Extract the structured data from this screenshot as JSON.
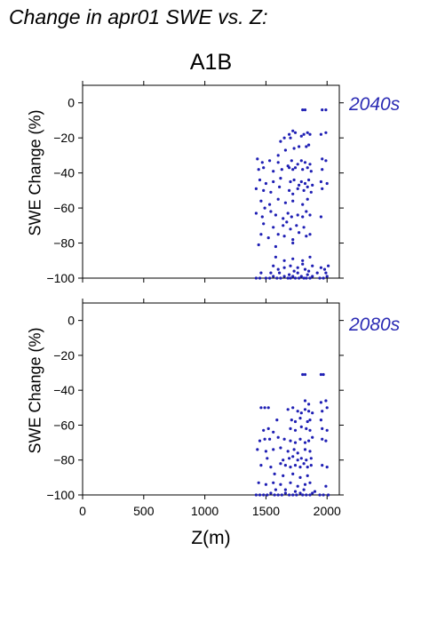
{
  "title": "Change in apr01 SWE vs. Z:",
  "scenario": "A1B",
  "xlabel": "Z(m)",
  "colors": {
    "points": "#1f1fb4",
    "period_text": "#2b2bb4",
    "axes": "#000000"
  },
  "chart_data": [
    {
      "type": "scatter",
      "panel_label": "2040s",
      "ylabel": "SWE Change (%)",
      "xlim": [
        0,
        2100
      ],
      "ylim": [
        -100,
        10
      ],
      "yticks": [
        0,
        -20,
        -40,
        -60,
        -80,
        -100
      ],
      "xticks": [
        0,
        500,
        1000,
        1500,
        2000
      ],
      "x_tick_labels_shown": false,
      "points": [
        [
          1800,
          -4
        ],
        [
          1820,
          -4
        ],
        [
          1960,
          -4
        ],
        [
          1990,
          -4
        ],
        [
          1650,
          -20
        ],
        [
          1690,
          -18
        ],
        [
          1720,
          -16
        ],
        [
          1740,
          -17
        ],
        [
          1790,
          -19
        ],
        [
          1810,
          -18
        ],
        [
          1840,
          -17
        ],
        [
          1860,
          -18
        ],
        [
          1950,
          -18
        ],
        [
          1990,
          -17
        ],
        [
          1620,
          -22
        ],
        [
          1700,
          -20
        ],
        [
          1730,
          -26
        ],
        [
          1770,
          -25
        ],
        [
          1830,
          -25
        ],
        [
          1850,
          -24
        ],
        [
          1600,
          -30
        ],
        [
          1660,
          -27
        ],
        [
          1430,
          -32
        ],
        [
          1470,
          -34
        ],
        [
          1530,
          -33
        ],
        [
          1600,
          -34
        ],
        [
          1680,
          -36
        ],
        [
          1710,
          -33
        ],
        [
          1760,
          -35
        ],
        [
          1790,
          -33
        ],
        [
          1820,
          -34
        ],
        [
          1860,
          -35
        ],
        [
          1960,
          -32
        ],
        [
          1990,
          -33
        ],
        [
          1440,
          -38
        ],
        [
          1480,
          -37
        ],
        [
          1560,
          -39
        ],
        [
          1630,
          -38
        ],
        [
          1690,
          -37
        ],
        [
          1720,
          -38
        ],
        [
          1740,
          -37
        ],
        [
          1800,
          -38
        ],
        [
          1840,
          -37
        ],
        [
          1870,
          -39
        ],
        [
          1960,
          -38
        ],
        [
          1450,
          -44
        ],
        [
          1500,
          -46
        ],
        [
          1560,
          -45
        ],
        [
          1620,
          -43
        ],
        [
          1700,
          -45
        ],
        [
          1730,
          -44
        ],
        [
          1770,
          -47
        ],
        [
          1790,
          -45
        ],
        [
          1820,
          -46
        ],
        [
          1850,
          -44
        ],
        [
          1880,
          -47
        ],
        [
          1950,
          -45
        ],
        [
          2000,
          -46
        ],
        [
          1420,
          -49
        ],
        [
          1480,
          -50
        ],
        [
          1540,
          -51
        ],
        [
          1610,
          -48
        ],
        [
          1690,
          -50
        ],
        [
          1720,
          -52
        ],
        [
          1760,
          -49
        ],
        [
          1810,
          -50
        ],
        [
          1840,
          -48
        ],
        [
          1870,
          -51
        ],
        [
          1960,
          -49
        ],
        [
          1460,
          -56
        ],
        [
          1530,
          -58
        ],
        [
          1600,
          -55
        ],
        [
          1660,
          -57
        ],
        [
          1720,
          -56
        ],
        [
          1800,
          -58
        ],
        [
          1840,
          -55
        ],
        [
          1420,
          -63
        ],
        [
          1470,
          -65
        ],
        [
          1540,
          -62
        ],
        [
          1580,
          -64
        ],
        [
          1640,
          -66
        ],
        [
          1680,
          -63
        ],
        [
          1710,
          -65
        ],
        [
          1760,
          -64
        ],
        [
          1800,
          -65
        ],
        [
          1830,
          -62
        ],
        [
          1860,
          -64
        ],
        [
          1950,
          -65
        ],
        [
          1490,
          -60
        ],
        [
          1480,
          -69
        ],
        [
          1560,
          -71
        ],
        [
          1640,
          -70
        ],
        [
          1670,
          -68
        ],
        [
          1700,
          -72
        ],
        [
          1750,
          -70
        ],
        [
          1810,
          -71
        ],
        [
          1460,
          -75
        ],
        [
          1520,
          -77
        ],
        [
          1600,
          -75
        ],
        [
          1650,
          -76
        ],
        [
          1720,
          -78
        ],
        [
          1770,
          -74
        ],
        [
          1830,
          -76
        ],
        [
          1860,
          -75
        ],
        [
          1440,
          -81
        ],
        [
          1580,
          -82
        ],
        [
          1720,
          -80
        ],
        [
          1580,
          -88
        ],
        [
          1650,
          -90
        ],
        [
          1720,
          -89
        ],
        [
          1800,
          -90
        ],
        [
          1860,
          -88
        ],
        [
          1560,
          -93
        ],
        [
          1600,
          -95
        ],
        [
          1650,
          -94
        ],
        [
          1700,
          -93
        ],
        [
          1730,
          -96
        ],
        [
          1760,
          -94
        ],
        [
          1800,
          -92
        ],
        [
          1820,
          -95
        ],
        [
          1850,
          -96
        ],
        [
          1880,
          -93
        ],
        [
          1950,
          -94
        ],
        [
          1980,
          -95
        ],
        [
          2010,
          -93
        ],
        [
          1420,
          -100
        ],
        [
          1450,
          -100
        ],
        [
          1500,
          -100
        ],
        [
          1530,
          -100
        ],
        [
          1560,
          -99
        ],
        [
          1590,
          -100
        ],
        [
          1620,
          -100
        ],
        [
          1650,
          -99
        ],
        [
          1680,
          -100
        ],
        [
          1700,
          -100
        ],
        [
          1720,
          -99
        ],
        [
          1740,
          -100
        ],
        [
          1770,
          -100
        ],
        [
          1790,
          -99
        ],
        [
          1810,
          -100
        ],
        [
          1830,
          -100
        ],
        [
          1860,
          -100
        ],
        [
          1880,
          -99
        ],
        [
          1940,
          -100
        ],
        [
          1970,
          -100
        ],
        [
          2000,
          -99
        ],
        [
          1460,
          -97
        ],
        [
          1540,
          -97
        ],
        [
          1610,
          -97
        ],
        [
          1690,
          -98
        ],
        [
          1760,
          -97
        ],
        [
          1840,
          -98
        ],
        [
          1920,
          -97
        ],
        [
          1990,
          -97
        ]
      ]
    },
    {
      "type": "scatter",
      "panel_label": "2080s",
      "ylabel": "SWE Change (%)",
      "xlabel": "Z(m)",
      "xlim": [
        0,
        2100
      ],
      "ylim": [
        -100,
        10
      ],
      "yticks": [
        0,
        -20,
        -40,
        -60,
        -80,
        -100
      ],
      "xticks": [
        0,
        500,
        1000,
        1500,
        2000
      ],
      "xtick_labels": [
        "0",
        "500",
        "1000",
        "1500",
        "2000"
      ],
      "points": [
        [
          1800,
          -31
        ],
        [
          1820,
          -31
        ],
        [
          1950,
          -31
        ],
        [
          1970,
          -31
        ],
        [
          1820,
          -46
        ],
        [
          1850,
          -48
        ],
        [
          1950,
          -47
        ],
        [
          1990,
          -46
        ],
        [
          1460,
          -50
        ],
        [
          1490,
          -50
        ],
        [
          1520,
          -50
        ],
        [
          1680,
          -51
        ],
        [
          1720,
          -50
        ],
        [
          1760,
          -52
        ],
        [
          1790,
          -53
        ],
        [
          1820,
          -51
        ],
        [
          1850,
          -52
        ],
        [
          1880,
          -53
        ],
        [
          1960,
          -52
        ],
        [
          2000,
          -50
        ],
        [
          1590,
          -57
        ],
        [
          1710,
          -57
        ],
        [
          1740,
          -58
        ],
        [
          1780,
          -56
        ],
        [
          1840,
          -58
        ],
        [
          1860,
          -57
        ],
        [
          1950,
          -57
        ],
        [
          1480,
          -63
        ],
        [
          1520,
          -62
        ],
        [
          1560,
          -64
        ],
        [
          1700,
          -62
        ],
        [
          1740,
          -63
        ],
        [
          1790,
          -61
        ],
        [
          1830,
          -62
        ],
        [
          1860,
          -63
        ],
        [
          1960,
          -62
        ],
        [
          2000,
          -63
        ],
        [
          1450,
          -69
        ],
        [
          1490,
          -68
        ],
        [
          1530,
          -68
        ],
        [
          1600,
          -67
        ],
        [
          1650,
          -68
        ],
        [
          1700,
          -69
        ],
        [
          1740,
          -70
        ],
        [
          1780,
          -68
        ],
        [
          1820,
          -70
        ],
        [
          1850,
          -69
        ],
        [
          1880,
          -67
        ],
        [
          1960,
          -68
        ],
        [
          1990,
          -69
        ],
        [
          1430,
          -74
        ],
        [
          1500,
          -75
        ],
        [
          1560,
          -74
        ],
        [
          1620,
          -73
        ],
        [
          1680,
          -75
        ],
        [
          1730,
          -74
        ],
        [
          1760,
          -76
        ],
        [
          1820,
          -74
        ],
        [
          1860,
          -75
        ],
        [
          1510,
          -79
        ],
        [
          1640,
          -80
        ],
        [
          1690,
          -79
        ],
        [
          1720,
          -78
        ],
        [
          1760,
          -80
        ],
        [
          1790,
          -79
        ],
        [
          1830,
          -80
        ],
        [
          1870,
          -79
        ],
        [
          1460,
          -83
        ],
        [
          1540,
          -84
        ],
        [
          1620,
          -82
        ],
        [
          1660,
          -83
        ],
        [
          1700,
          -84
        ],
        [
          1740,
          -83
        ],
        [
          1780,
          -84
        ],
        [
          1810,
          -82
        ],
        [
          1840,
          -84
        ],
        [
          1870,
          -83
        ],
        [
          1960,
          -83
        ],
        [
          2000,
          -84
        ],
        [
          1570,
          -88
        ],
        [
          1640,
          -89
        ],
        [
          1720,
          -88
        ],
        [
          1780,
          -90
        ],
        [
          1840,
          -89
        ],
        [
          1440,
          -93
        ],
        [
          1500,
          -94
        ],
        [
          1560,
          -93
        ],
        [
          1620,
          -94
        ],
        [
          1700,
          -93
        ],
        [
          1760,
          -95
        ],
        [
          1820,
          -94
        ],
        [
          1860,
          -93
        ],
        [
          1990,
          -95
        ],
        [
          1420,
          -100
        ],
        [
          1450,
          -100
        ],
        [
          1480,
          -100
        ],
        [
          1510,
          -100
        ],
        [
          1540,
          -99
        ],
        [
          1570,
          -100
        ],
        [
          1600,
          -100
        ],
        [
          1630,
          -100
        ],
        [
          1660,
          -99
        ],
        [
          1690,
          -100
        ],
        [
          1720,
          -100
        ],
        [
          1750,
          -100
        ],
        [
          1780,
          -99
        ],
        [
          1800,
          -100
        ],
        [
          1830,
          -100
        ],
        [
          1860,
          -100
        ],
        [
          1880,
          -99
        ],
        [
          1940,
          -100
        ],
        [
          1970,
          -100
        ],
        [
          2010,
          -100
        ],
        [
          1580,
          -97
        ],
        [
          1660,
          -97
        ],
        [
          1740,
          -98
        ],
        [
          1810,
          -97
        ],
        [
          1900,
          -98
        ]
      ]
    }
  ]
}
